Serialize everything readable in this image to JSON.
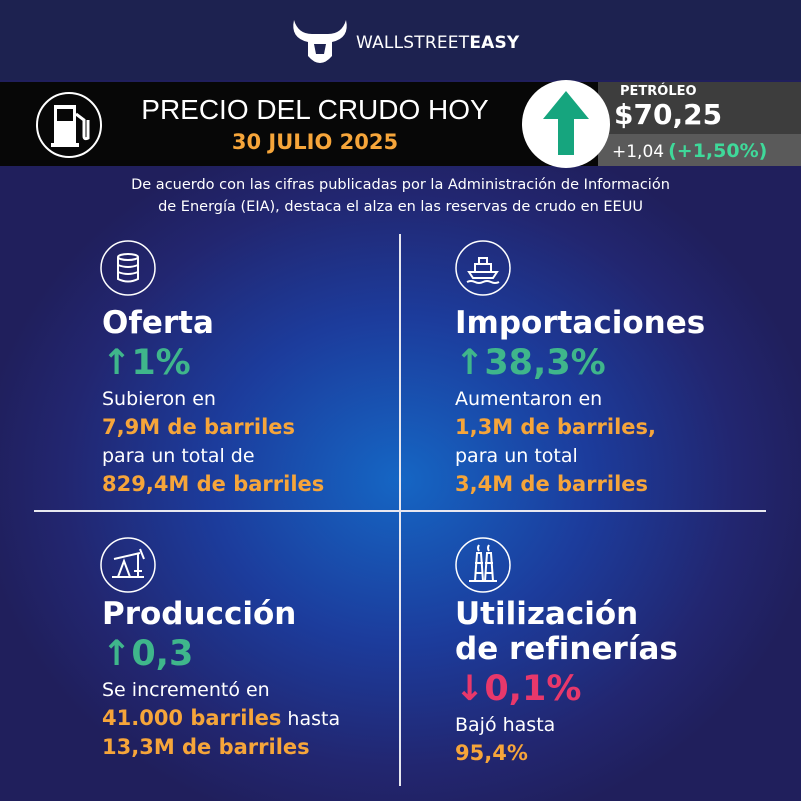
{
  "brand": {
    "name_light": "WALLSTREET",
    "name_bold": "EASY"
  },
  "header": {
    "title": "PRECIO DEL CRUDO HOY",
    "date": "30 JULIO 2025"
  },
  "ticker": {
    "label": "PETRÓLEO",
    "price": "$70,25",
    "change": "+1,04",
    "change_pct": "(+1,50%)"
  },
  "intro": {
    "lines": [
      "De acuerdo con las cifras publicadas por la Administración de Información",
      "de Energía (EIA), destaca el alza en las reservas de crudo en EEUU"
    ]
  },
  "panels": [
    {
      "title": [
        "Oferta"
      ],
      "change": "↑1%",
      "change_color": "#3fb68b",
      "lines": [
        [
          {
            "text": "Subieron en",
            "highlight": false
          }
        ],
        [
          {
            "text": "7,9M de barriles",
            "highlight": true
          }
        ],
        [
          {
            "text": "para un total de",
            "highlight": false
          }
        ],
        [
          {
            "text": "829,4M de barriles",
            "highlight": true
          }
        ]
      ]
    },
    {
      "title": [
        "Importaciones"
      ],
      "change": "↑38,3%",
      "change_color": "#3fb68b",
      "lines": [
        [
          {
            "text": "Aumentaron en",
            "highlight": false
          }
        ],
        [
          {
            "text": "1,3M de barriles,",
            "highlight": true
          }
        ],
        [
          {
            "text": "para un total",
            "highlight": false
          }
        ],
        [
          {
            "text": "3,4M de barriles",
            "highlight": true
          }
        ]
      ]
    },
    {
      "title": [
        "Producción"
      ],
      "change": "↑0,3",
      "change_color": "#3fb68b",
      "lines": [
        [
          {
            "text": "Se incrementó en",
            "highlight": false
          }
        ],
        [
          {
            "text": "41.000 barriles",
            "highlight": true
          },
          {
            "text": "hasta",
            "highlight": false
          }
        ],
        [
          {
            "text": "13,3M de barriles",
            "highlight": true
          }
        ]
      ]
    },
    {
      "title": [
        "Utilización",
        "de refinerías"
      ],
      "change": "↓0,1%",
      "change_color": "#e8386b",
      "lines": [
        [
          {
            "text": "Bajó hasta",
            "highlight": false
          }
        ],
        [
          {
            "text": "95,4%",
            "highlight": true
          }
        ]
      ]
    }
  ]
}
